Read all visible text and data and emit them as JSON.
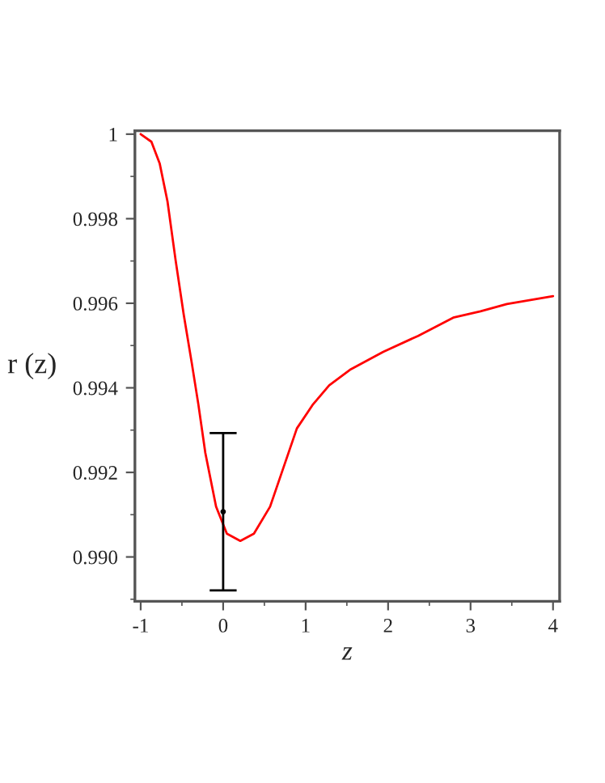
{
  "chart_data": {
    "type": "line",
    "xlabel": "z",
    "ylabel": "r (z)",
    "series": [
      {
        "color": "#ff0000",
        "x": [
          -1,
          -0.87,
          -0.77,
          -0.675,
          -0.576,
          -0.478,
          -0.38,
          -0.3,
          -0.216,
          -0.086,
          0.045,
          0.208,
          0.373,
          0.569,
          0.894,
          1.09,
          1.286,
          1.549,
          1.941,
          2.365,
          2.79,
          3.12,
          3.44,
          4.0
        ],
        "values": [
          1.0,
          0.99982,
          0.99931,
          0.99841,
          0.99701,
          0.99573,
          0.99458,
          0.9936,
          0.99246,
          0.99119,
          0.99055,
          0.99038,
          0.99055,
          0.99119,
          0.99304,
          0.99361,
          0.99406,
          0.99444,
          0.99485,
          0.99523,
          0.99566,
          0.99581,
          0.99598,
          0.99617
        ]
      },
      {
        "type": "scatter",
        "color": "#000000",
        "marker": "none",
        "x": [
          0
        ],
        "values": [
          0.99107
        ],
        "errors": [
          0.00186
        ]
      }
    ],
    "xlim": [
      -1.07,
      4.08
    ],
    "ylim": [
      0.98895,
      1.00008
    ],
    "xticks": [
      {
        "value": -1,
        "label": "-1"
      },
      0,
      1,
      2,
      3,
      4
    ],
    "yticks": [
      {
        "value": 0.99,
        "label": "0.990"
      },
      {
        "value": 0.992,
        "label": "0.992"
      },
      {
        "value": 0.994,
        "label": "0.994"
      },
      {
        "value": 0.996,
        "label": "0.996"
      },
      {
        "value": 0.998,
        "label": "0.998"
      },
      1
    ],
    "grid": false,
    "legend": false
  }
}
